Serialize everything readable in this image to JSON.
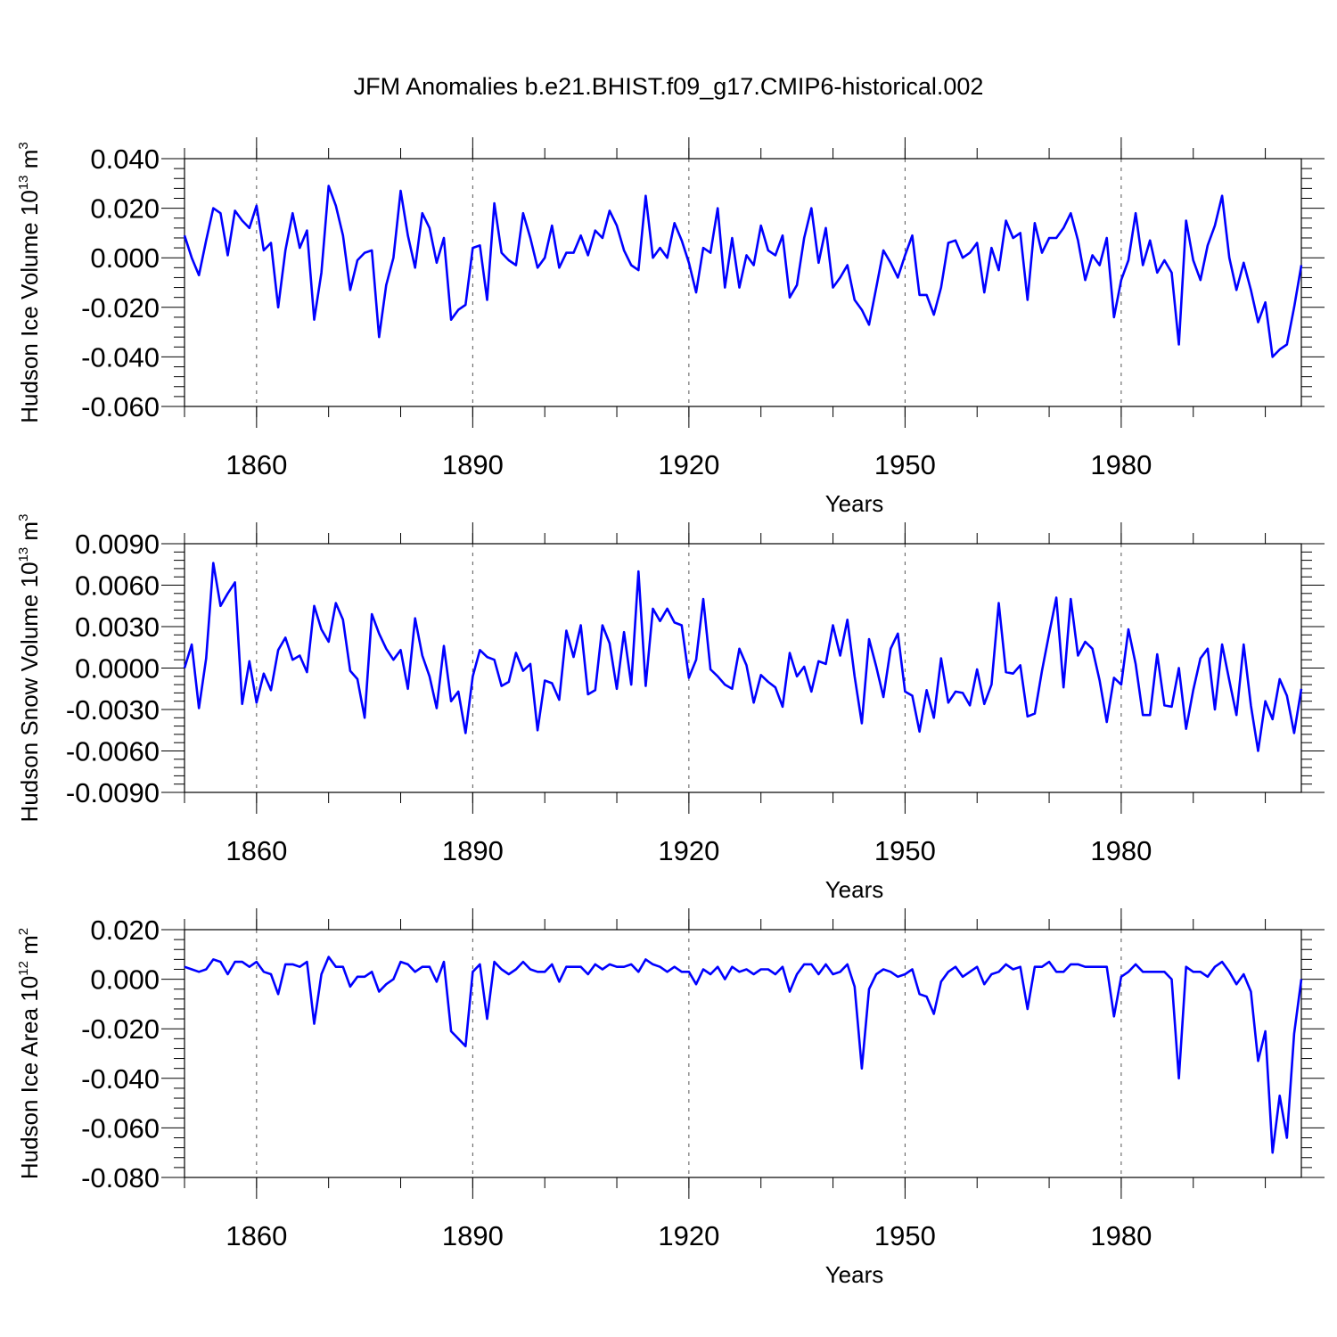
{
  "chart_data": {
    "title": "JFM Anomalies b.e21.BHIST.f09_g17.CMIP6-historical.002",
    "panels": [
      {
        "type": "line",
        "ylabel": "Hudson Ice Volume",
        "units": {
          "base": "10",
          "exp": "13",
          "unit": "m",
          "unit_exp": "3"
        },
        "xlabel": "Years",
        "xlim": [
          1850,
          2005
        ],
        "ylim": [
          -0.06,
          0.04
        ],
        "xticks": [
          1860,
          1890,
          1920,
          1950,
          1980
        ],
        "xtick_labels": [
          "1860",
          "1890",
          "1920",
          "1950",
          "1980"
        ],
        "yticks": [
          -0.06,
          -0.04,
          -0.02,
          0.0,
          0.02,
          0.04
        ],
        "ytick_labels": [
          "-0.060",
          "-0.040",
          "-0.020",
          "0.000",
          "0.020",
          "0.040"
        ],
        "grid": "vertical dashed at major x ticks",
        "line_color": "#0000ff",
        "x_start": 1850,
        "values": [
          0.009,
          0.0,
          -0.007,
          0.007,
          0.02,
          0.018,
          0.001,
          0.019,
          0.015,
          0.012,
          0.021,
          0.003,
          0.006,
          -0.02,
          0.003,
          0.018,
          0.004,
          0.011,
          -0.025,
          -0.006,
          0.029,
          0.021,
          0.009,
          -0.013,
          -0.001,
          0.002,
          0.003,
          -0.032,
          -0.011,
          0.0,
          0.027,
          0.009,
          -0.004,
          0.018,
          0.012,
          -0.002,
          0.008,
          -0.025,
          -0.021,
          -0.019,
          0.004,
          0.005,
          -0.017,
          0.022,
          0.002,
          -0.001,
          -0.003,
          0.018,
          0.008,
          -0.004,
          0.0,
          0.013,
          -0.004,
          0.002,
          0.002,
          0.009,
          0.001,
          0.011,
          0.008,
          0.019,
          0.013,
          0.003,
          -0.003,
          -0.005,
          0.025,
          0.0,
          0.004,
          0.0,
          0.014,
          0.007,
          -0.002,
          -0.014,
          0.004,
          0.002,
          0.02,
          -0.012,
          0.008,
          -0.012,
          0.001,
          -0.003,
          0.013,
          0.003,
          0.001,
          0.009,
          -0.016,
          -0.011,
          0.008,
          0.02,
          -0.002,
          0.012,
          -0.012,
          -0.008,
          -0.003,
          -0.017,
          -0.021,
          -0.027,
          -0.012,
          0.003,
          -0.002,
          -0.008,
          0.001,
          0.009,
          -0.015,
          -0.015,
          -0.023,
          -0.012,
          0.006,
          0.007,
          0.0,
          0.002,
          0.006,
          -0.014,
          0.004,
          -0.005,
          0.015,
          0.008,
          0.01,
          -0.017,
          0.014,
          0.002,
          0.008,
          0.008,
          0.012,
          0.018,
          0.007,
          -0.009,
          0.001,
          -0.003,
          0.008,
          -0.024,
          -0.009,
          -0.001,
          0.018,
          -0.003,
          0.007,
          -0.006,
          -0.001,
          -0.006,
          -0.035,
          0.015,
          -0.001,
          -0.009,
          0.005,
          0.013,
          0.025,
          0.0,
          -0.013,
          -0.002,
          -0.013,
          -0.026,
          -0.018,
          -0.04,
          -0.037,
          -0.035,
          -0.02,
          -0.003
        ]
      },
      {
        "type": "line",
        "ylabel": "Hudson Snow Volume",
        "units": {
          "base": "10",
          "exp": "13",
          "unit": "m",
          "unit_exp": "3"
        },
        "xlabel": "Years",
        "xlim": [
          1850,
          2005
        ],
        "ylim": [
          -0.009,
          0.009
        ],
        "xticks": [
          1860,
          1890,
          1920,
          1950,
          1980
        ],
        "xtick_labels": [
          "1860",
          "1890",
          "1920",
          "1950",
          "1980"
        ],
        "yticks": [
          -0.009,
          -0.006,
          -0.003,
          0.0,
          0.003,
          0.006,
          0.009
        ],
        "ytick_labels": [
          "-0.0090",
          "-0.0060",
          "-0.0030",
          "0.0000",
          "0.0030",
          "0.0060",
          "0.0090"
        ],
        "grid": "vertical dashed at major x ticks",
        "line_color": "#0000ff",
        "x_start": 1850,
        "values": [
          0.0,
          0.0017,
          -0.0029,
          0.0007,
          0.0076,
          0.0045,
          0.0054,
          0.0062,
          -0.0026,
          0.0005,
          -0.0025,
          -0.0004,
          -0.0016,
          0.0013,
          0.0022,
          0.0006,
          0.0009,
          -0.0003,
          0.0045,
          0.0028,
          0.0019,
          0.0047,
          0.0035,
          -0.0002,
          -0.0008,
          -0.0036,
          0.0039,
          0.0025,
          0.0014,
          0.0006,
          0.0013,
          -0.0015,
          0.0036,
          0.0009,
          -0.0006,
          -0.0029,
          0.0016,
          -0.0024,
          -0.0017,
          -0.0047,
          -0.0006,
          0.0013,
          0.0008,
          0.0006,
          -0.0013,
          -0.001,
          0.0011,
          -0.0002,
          0.0003,
          -0.0045,
          -0.0009,
          -0.0011,
          -0.0023,
          0.0027,
          0.0008,
          0.0031,
          -0.0019,
          -0.0016,
          0.0031,
          0.0018,
          -0.0015,
          0.0026,
          -0.0012,
          0.007,
          -0.0013,
          0.0043,
          0.0034,
          0.0043,
          0.0033,
          0.0031,
          -0.0007,
          0.0006,
          0.005,
          -0.0001,
          -0.0006,
          -0.0012,
          -0.0015,
          0.0014,
          0.0002,
          -0.0025,
          -0.0005,
          -0.001,
          -0.0014,
          -0.0028,
          0.0011,
          -0.0006,
          0.0001,
          -0.0017,
          0.0005,
          0.0003,
          0.0031,
          0.0009,
          0.0035,
          -0.0006,
          -0.004,
          0.0021,
          0.0001,
          -0.0021,
          0.0014,
          0.0025,
          -0.0017,
          -0.002,
          -0.0046,
          -0.0016,
          -0.0036,
          0.0007,
          -0.0025,
          -0.0017,
          -0.0018,
          -0.0027,
          -0.0001,
          -0.0026,
          -0.0012,
          0.0047,
          -0.0003,
          -0.0004,
          0.0002,
          -0.0035,
          -0.0033,
          -0.0002,
          0.0025,
          0.0051,
          -0.0014,
          0.005,
          0.0009,
          0.0019,
          0.0014,
          -0.0009,
          -0.0039,
          -0.0007,
          -0.0012,
          0.0028,
          0.0003,
          -0.0034,
          -0.0034,
          0.001,
          -0.0027,
          -0.0028,
          0.0,
          -0.0044,
          -0.0016,
          0.0007,
          0.0014,
          -0.003,
          0.0017,
          -0.0009,
          -0.0034,
          0.0017,
          -0.0027,
          -0.006,
          -0.0024,
          -0.0037,
          -0.0008,
          -0.002,
          -0.0047,
          -0.0015
        ]
      },
      {
        "type": "line",
        "ylabel": "Hudson Ice Area",
        "units": {
          "base": "10",
          "exp": "12",
          "unit": "m",
          "unit_exp": "2"
        },
        "xlabel": "Years",
        "xlim": [
          1850,
          2005
        ],
        "ylim": [
          -0.08,
          0.02
        ],
        "xticks": [
          1860,
          1890,
          1920,
          1950,
          1980
        ],
        "xtick_labels": [
          "1860",
          "1890",
          "1920",
          "1950",
          "1980"
        ],
        "yticks": [
          -0.08,
          -0.06,
          -0.04,
          -0.02,
          0.0,
          0.02
        ],
        "ytick_labels": [
          "-0.080",
          "-0.060",
          "-0.040",
          "-0.020",
          "0.000",
          "0.020"
        ],
        "grid": "vertical dashed at major x ticks",
        "line_color": "#0000ff",
        "x_start": 1850,
        "values": [
          0.005,
          0.004,
          0.003,
          0.004,
          0.008,
          0.007,
          0.002,
          0.007,
          0.007,
          0.005,
          0.007,
          0.003,
          0.002,
          -0.006,
          0.006,
          0.006,
          0.005,
          0.007,
          -0.018,
          0.002,
          0.009,
          0.005,
          0.005,
          -0.003,
          0.001,
          0.001,
          0.003,
          -0.005,
          -0.002,
          0.0,
          0.007,
          0.006,
          0.003,
          0.005,
          0.005,
          -0.001,
          0.007,
          -0.021,
          -0.024,
          -0.027,
          0.003,
          0.006,
          -0.016,
          0.007,
          0.004,
          0.002,
          0.004,
          0.007,
          0.004,
          0.003,
          0.003,
          0.006,
          -0.001,
          0.005,
          0.005,
          0.005,
          0.002,
          0.006,
          0.004,
          0.006,
          0.005,
          0.005,
          0.006,
          0.003,
          0.008,
          0.006,
          0.005,
          0.003,
          0.005,
          0.003,
          0.003,
          -0.002,
          0.004,
          0.002,
          0.005,
          0.0,
          0.005,
          0.003,
          0.004,
          0.002,
          0.004,
          0.004,
          0.002,
          0.005,
          -0.005,
          0.002,
          0.006,
          0.006,
          0.002,
          0.006,
          0.002,
          0.003,
          0.006,
          -0.003,
          -0.036,
          -0.004,
          0.002,
          0.004,
          0.003,
          0.001,
          0.002,
          0.004,
          -0.006,
          -0.007,
          -0.014,
          -0.001,
          0.003,
          0.005,
          0.001,
          0.003,
          0.005,
          -0.002,
          0.002,
          0.003,
          0.006,
          0.004,
          0.005,
          -0.012,
          0.005,
          0.005,
          0.007,
          0.003,
          0.003,
          0.006,
          0.006,
          0.005,
          0.005,
          0.005,
          0.005,
          -0.015,
          0.001,
          0.003,
          0.006,
          0.003,
          0.003,
          0.003,
          0.003,
          0.0,
          -0.04,
          0.005,
          0.003,
          0.003,
          0.001,
          0.005,
          0.007,
          0.003,
          -0.002,
          0.002,
          -0.005,
          -0.033,
          -0.021,
          -0.07,
          -0.047,
          -0.064,
          -0.022,
          0.0
        ]
      }
    ]
  }
}
